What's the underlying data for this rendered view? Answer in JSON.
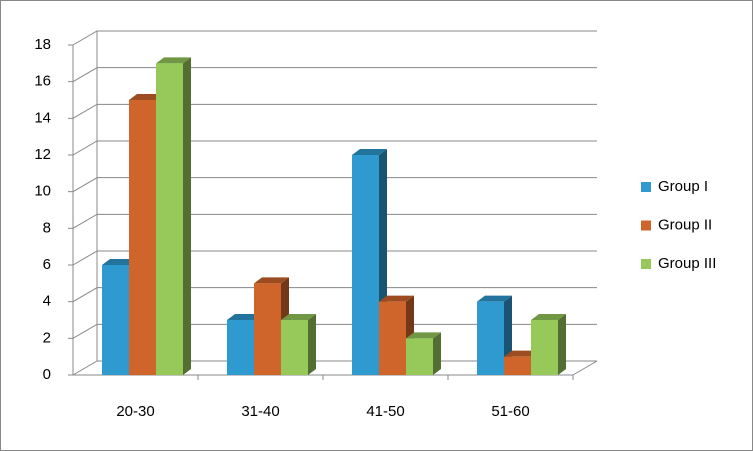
{
  "chart_data": {
    "type": "bar3d",
    "categories": [
      "20-30",
      "31-40",
      "41-50",
      "51-60"
    ],
    "series": [
      {
        "name": "Group I",
        "color": "#2e9ad0",
        "values": [
          6,
          3,
          12,
          4
        ]
      },
      {
        "name": "Group II",
        "color": "#d0652b",
        "values": [
          15,
          5,
          4,
          1
        ]
      },
      {
        "name": "Group III",
        "color": "#96c85a",
        "values": [
          17,
          3,
          2,
          3
        ]
      }
    ],
    "ylim": [
      0,
      18
    ],
    "yticks": [
      0,
      2,
      4,
      6,
      8,
      10,
      12,
      14,
      16,
      18
    ],
    "grid": true,
    "legend": "right"
  }
}
